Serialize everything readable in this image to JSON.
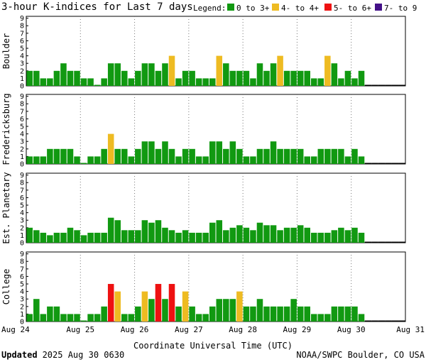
{
  "chart_data": {
    "type": "bar",
    "title": "3-hour K-indices for Last 7 days",
    "legend": {
      "label": "Legend:",
      "position": "top-right",
      "items": [
        {
          "label": "0 to 3+",
          "color": "#119911"
        },
        {
          "label": "4- to 4+",
          "color": "#eebb22"
        },
        {
          "label": "5- to 6+",
          "color": "#ee1111"
        },
        {
          "label": "7- to 9",
          "color": "#441188"
        }
      ]
    },
    "xlabel": "Coordinate Universal Time (UTC)",
    "x_ticks": [
      "Aug 24",
      "Aug 25",
      "Aug 26",
      "Aug 27",
      "Aug 28",
      "Aug 29",
      "Aug 30",
      "Aug 31"
    ],
    "ylim": [
      0,
      9
    ],
    "y_ticks": [
      "0",
      "1",
      "2",
      "3",
      "4",
      "5",
      "6",
      "7",
      "8",
      "9"
    ],
    "intervals_per_day": 8,
    "grid": true,
    "panels": [
      {
        "name": "Boulder",
        "values": [
          2,
          2,
          1,
          1,
          2,
          3,
          2,
          2,
          1,
          1,
          0,
          1,
          3,
          3,
          2,
          1,
          2,
          3,
          3,
          2,
          3,
          4,
          1,
          2,
          2,
          1,
          1,
          1,
          4,
          3,
          2,
          2,
          2,
          1,
          3,
          2,
          3,
          4,
          2,
          2,
          2,
          2,
          1,
          1,
          4,
          3,
          1,
          2,
          1,
          2
        ]
      },
      {
        "name": "Fredericksburg",
        "values": [
          1,
          1,
          1,
          2,
          2,
          2,
          2,
          1,
          0,
          1,
          1,
          2,
          4,
          2,
          2,
          1,
          2,
          3,
          3,
          2,
          3,
          2,
          1,
          2,
          2,
          1,
          1,
          3,
          3,
          2,
          3,
          2,
          1,
          1,
          2,
          2,
          3,
          2,
          2,
          2,
          2,
          1,
          1,
          2,
          2,
          2,
          2,
          1,
          2,
          1
        ]
      },
      {
        "name": "Est. Planetary",
        "values": [
          2,
          1.67,
          1.33,
          1,
          1.33,
          1.33,
          2,
          1.67,
          1,
          1.33,
          1.33,
          1.33,
          3.33,
          3,
          1.67,
          1.67,
          1.67,
          3,
          2.67,
          3,
          2,
          1.67,
          1.33,
          1.67,
          1.33,
          1.33,
          1.33,
          2.67,
          3,
          1.67,
          2,
          2.33,
          2,
          1.67,
          2.67,
          2.33,
          2.33,
          1.67,
          2,
          2,
          2.33,
          2,
          1.33,
          1.33,
          1.33,
          1.67,
          2,
          1.67,
          2,
          1.33
        ]
      },
      {
        "name": "College",
        "values": [
          1,
          3,
          1,
          2,
          2,
          1,
          1,
          1,
          0,
          1,
          1,
          2,
          5,
          4,
          1,
          1,
          2,
          4,
          3,
          5,
          3,
          5,
          2,
          4,
          2,
          1,
          1,
          2,
          3,
          3,
          3,
          4,
          2,
          2,
          3,
          2,
          2,
          2,
          2,
          3,
          2,
          2,
          1,
          1,
          1,
          2,
          2,
          2,
          2,
          1
        ]
      }
    ]
  },
  "footer": {
    "updated_label": "Updated",
    "updated_value": "2025 Aug 30 0630",
    "source": "NOAA/SWPC Boulder, CO USA"
  }
}
